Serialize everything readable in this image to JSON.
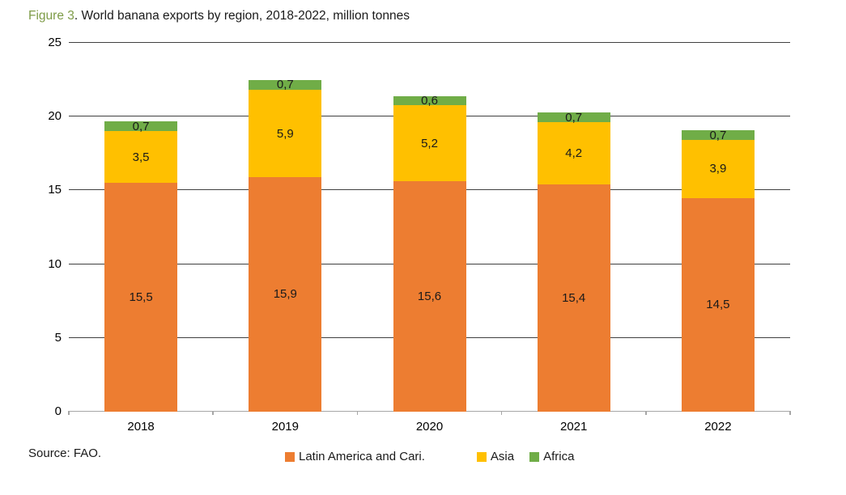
{
  "header": {
    "figure_label": "Figure 3",
    "title_rest": ". World banana exports by region, 2018-2022, million tonnes"
  },
  "source_note": "Source: FAO.",
  "colors": {
    "figure_label_green": "#7E9C48",
    "gridline": "#404040",
    "axis_line": "#A6A6A6",
    "latin_america_orange": "#ED7D31",
    "asia_yellow": "#FFC000",
    "africa_green": "#70AD47"
  },
  "chart_data": {
    "type": "bar",
    "stacked": true,
    "title": "Figure 3. World banana exports by region, 2018-2022, million tonnes",
    "xlabel": "",
    "ylabel": "",
    "ylim": [
      0,
      25
    ],
    "yticks": [
      0,
      5,
      10,
      15,
      20,
      25
    ],
    "grid": true,
    "decimal_separator": ",",
    "legend_position": "bottom",
    "categories": [
      "2018",
      "2019",
      "2020",
      "2021",
      "2022"
    ],
    "series": [
      {
        "name": "Latin America and Cari.",
        "color": "#ED7D31",
        "values": [
          15.5,
          15.9,
          15.6,
          15.4,
          14.5
        ],
        "labels": [
          "15,5",
          "15,9",
          "15,6",
          "15,4",
          "14,5"
        ]
      },
      {
        "name": "Asia",
        "color": "#FFC000",
        "values": [
          3.5,
          5.9,
          5.2,
          4.2,
          3.9
        ],
        "labels": [
          "3,5",
          "5,9",
          "5,2",
          "4,2",
          "3,9"
        ]
      },
      {
        "name": "Africa",
        "color": "#70AD47",
        "values": [
          0.7,
          0.7,
          0.6,
          0.7,
          0.7
        ],
        "labels": [
          "0,7",
          "0,7",
          "0,6",
          "0,7",
          "0,7"
        ]
      }
    ],
    "totals": [
      19.7,
      22.5,
      21.4,
      20.3,
      19.1
    ]
  }
}
